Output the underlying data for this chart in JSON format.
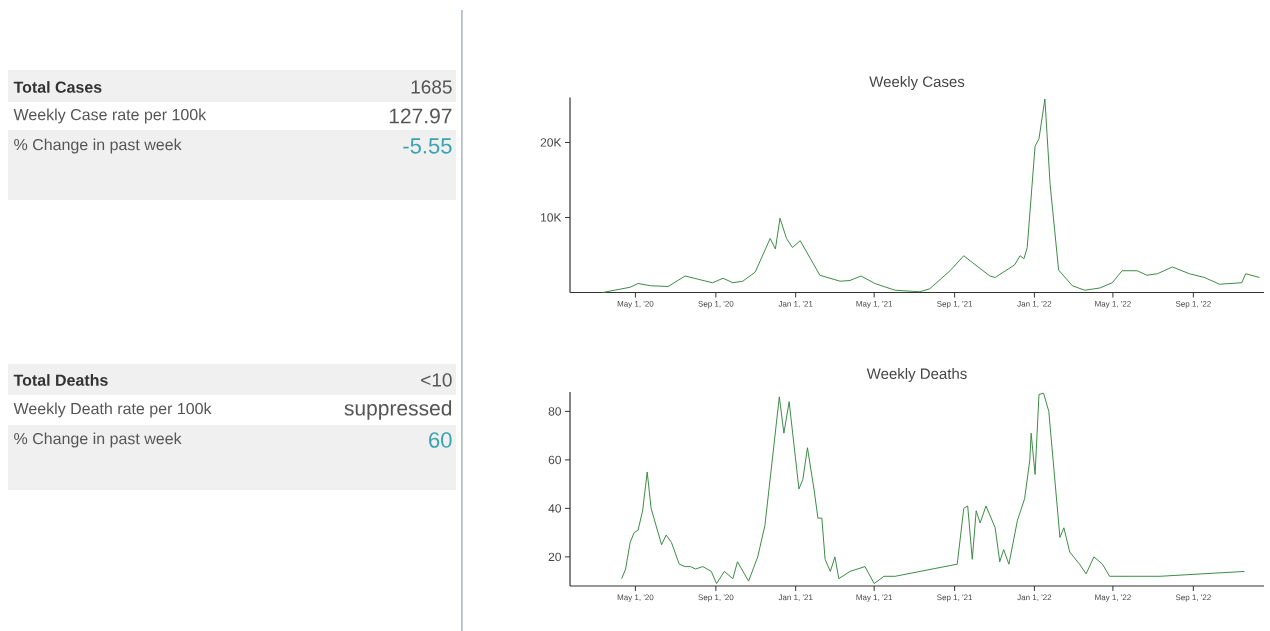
{
  "chart_data": [
    {
      "type": "other",
      "annotations": [
        "Total Cases",
        "1685",
        "Weekly Case rate per 100k",
        "127.97",
        "% Change in past week",
        "-5.55"
      ]
    },
    {
      "type": "line",
      "title": "Weekly Cases",
      "xlim": [
        "2020-01-22",
        "2022-12-18"
      ],
      "ylim": [
        0,
        26000
      ],
      "xticks": [
        {
          "value": "2020-05-01",
          "label": "May 1, '20"
        },
        {
          "value": "2020-09-01",
          "label": "Sep 1, '20"
        },
        {
          "value": "2021-01-01",
          "label": "Jan 1, '21"
        },
        {
          "value": "2021-05-01",
          "label": "May 1, '21"
        },
        {
          "value": "2021-09-01",
          "label": "Sep 1, '21"
        },
        {
          "value": "2022-01-01",
          "label": "Jan 1, '22"
        },
        {
          "value": "2022-05-01",
          "label": "May 1, '22"
        },
        {
          "value": "2022-09-01",
          "label": "Sep 1, '22"
        }
      ],
      "yticks": [
        {
          "value": 10000,
          "label": "10K"
        },
        {
          "value": 20000,
          "label": "20K"
        }
      ],
      "series": [
        {
          "color": "#3c8c46",
          "x": [
            "2020-03-12",
            "2020-04-23",
            "2020-05-05",
            "2020-05-24",
            "2020-06-20",
            "2020-07-16",
            "2020-08-08",
            "2020-08-27",
            "2020-09-12",
            "2020-09-27",
            "2020-10-12",
            "2020-10-31",
            "2020-11-23",
            "2020-12-01",
            "2020-12-08",
            "2020-12-18",
            "2020-12-27",
            "2021-01-08",
            "2021-02-07",
            "2021-03-10",
            "2021-03-25",
            "2021-04-11",
            "2021-05-02",
            "2021-06-02",
            "2021-07-10",
            "2021-07-25",
            "2021-08-25",
            "2021-09-15",
            "2021-09-28",
            "2021-10-25",
            "2021-11-02",
            "2021-12-02",
            "2021-12-10",
            "2021-12-16",
            "2021-12-21",
            "2022-01-02",
            "2022-01-08",
            "2022-01-17",
            "2022-01-25",
            "2022-02-07",
            "2022-02-28",
            "2022-03-19",
            "2022-04-11",
            "2022-04-30",
            "2022-05-15",
            "2022-06-07",
            "2022-06-22",
            "2022-07-08",
            "2022-07-31",
            "2022-08-26",
            "2022-09-18",
            "2022-10-11",
            "2022-11-14",
            "2022-11-20",
            "2022-12-11"
          ],
          "values": [
            0,
            700,
            1200,
            900,
            800,
            2200,
            1700,
            1300,
            1900,
            1300,
            1500,
            2700,
            7200,
            5800,
            9900,
            7200,
            6000,
            6900,
            2300,
            1500,
            1600,
            2200,
            1200,
            300,
            100,
            500,
            2900,
            4900,
            4000,
            2200,
            2000,
            3700,
            4900,
            4500,
            6000,
            19500,
            20500,
            25800,
            14400,
            3000,
            900,
            300,
            600,
            1300,
            2900,
            2900,
            2300,
            2500,
            3400,
            2500,
            2000,
            1100,
            1300,
            2500,
            2000
          ]
        }
      ]
    },
    {
      "type": "other",
      "annotations": [
        "Total Deaths",
        "<10",
        "Weekly Death rate per 100k",
        "suppressed",
        "% Change in past week",
        "60"
      ]
    },
    {
      "type": "line",
      "title": "Weekly Deaths",
      "xlim": [
        "2020-01-22",
        "2022-12-18"
      ],
      "ylim": [
        8,
        88
      ],
      "xticks": [
        {
          "value": "2020-05-01",
          "label": "May 1, '20"
        },
        {
          "value": "2020-09-01",
          "label": "Sep 1, '20"
        },
        {
          "value": "2021-01-01",
          "label": "Jan 1, '21"
        },
        {
          "value": "2021-05-01",
          "label": "May 1, '21"
        },
        {
          "value": "2021-09-01",
          "label": "Sep 1, '21"
        },
        {
          "value": "2022-01-01",
          "label": "Jan 1, '22"
        },
        {
          "value": "2022-05-01",
          "label": "May 1, '22"
        },
        {
          "value": "2022-09-01",
          "label": "Sep 1, '22"
        }
      ],
      "yticks": [
        20,
        40,
        60,
        80
      ],
      "series": [
        {
          "color": "#3c8c46",
          "x": [
            "2020-04-10",
            "2020-04-16",
            "2020-04-23",
            "2020-04-29",
            "2020-05-05",
            "2020-05-12",
            "2020-05-19",
            "2020-05-25",
            "2020-06-10",
            "2020-06-17",
            "2020-06-25",
            "2020-07-07",
            "2020-07-16",
            "2020-07-24",
            "2020-08-01",
            "2020-08-12",
            "2020-08-25",
            "2020-09-02",
            "2020-09-14",
            "2020-09-27",
            "2020-10-04",
            "2020-10-21",
            "2020-11-04",
            "2020-11-15",
            "2020-11-25",
            "2020-12-07",
            "2020-12-14",
            "2020-12-22",
            "2021-01-06",
            "2021-01-12",
            "2021-01-19",
            "2021-01-29",
            "2021-02-04",
            "2021-02-10",
            "2021-02-15",
            "2021-02-23",
            "2021-03-02",
            "2021-03-08",
            "2021-03-25",
            "2021-04-17",
            "2021-05-01",
            "2021-05-16",
            "2021-06-02",
            "2021-09-05",
            "2021-09-15",
            "2021-09-21",
            "2021-09-28",
            "2021-10-04",
            "2021-10-10",
            "2021-10-19",
            "2021-11-02",
            "2021-11-09",
            "2021-11-15",
            "2021-11-23",
            "2021-12-06",
            "2021-12-17",
            "2021-12-25",
            "2021-12-27",
            "2022-01-02",
            "2022-01-08",
            "2022-01-15",
            "2022-01-23",
            "2022-02-09",
            "2022-02-15",
            "2022-02-24",
            "2022-03-11",
            "2022-03-21",
            "2022-04-02",
            "2022-04-15",
            "2022-04-26",
            "2022-07-12",
            "2022-11-18"
          ],
          "values": [
            11,
            15,
            26,
            30,
            31,
            39,
            55,
            40,
            25,
            29,
            26,
            17,
            16,
            16,
            15,
            16,
            14,
            9,
            14,
            11,
            18,
            10,
            20,
            33,
            57,
            86,
            71,
            84,
            48,
            52,
            65,
            48,
            36,
            36,
            19,
            14,
            20,
            11,
            14,
            16,
            9,
            12,
            12,
            17,
            40,
            41,
            19,
            39,
            34,
            41,
            32,
            18,
            23,
            17,
            35,
            44,
            60,
            71,
            54,
            87,
            87.5,
            80,
            28,
            32,
            22,
            17,
            13,
            20,
            17,
            12,
            12,
            14
          ]
        }
      ]
    }
  ]
}
